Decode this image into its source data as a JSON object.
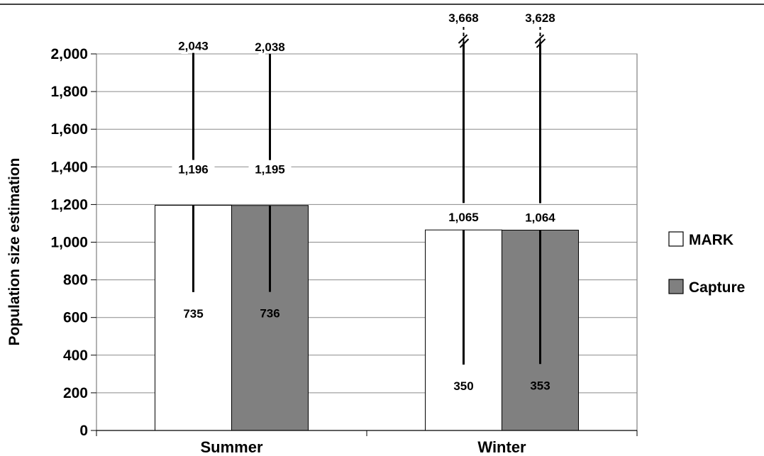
{
  "chart_data": {
    "type": "bar",
    "categories": [
      "Summer",
      "Winter"
    ],
    "ylabel": "Population size estimation",
    "xlabel": "",
    "title": "",
    "ylim": [
      0,
      2000
    ],
    "yticks": [
      0,
      200,
      400,
      600,
      800,
      1000,
      1200,
      1400,
      1600,
      1800,
      2000
    ],
    "ytick_labels": [
      "0",
      "200",
      "400",
      "600",
      "800",
      "1,000",
      "1,200",
      "1,400",
      "1,600",
      "1,800",
      "2,000"
    ],
    "grid": true,
    "legend_position": "right",
    "series": [
      {
        "name": "MARK",
        "color": "#ffffff",
        "values": [
          1196,
          1065
        ],
        "value_labels": [
          "1,196",
          "1,065"
        ],
        "lower": [
          735,
          350
        ],
        "lower_labels": [
          "735",
          "350"
        ],
        "upper": [
          2043,
          3668
        ],
        "upper_labels": [
          "2,043",
          "3,668"
        ],
        "upper_broken": [
          false,
          true
        ]
      },
      {
        "name": "Capture",
        "color": "#808080",
        "values": [
          1195,
          1064
        ],
        "value_labels": [
          "1,195",
          "1,064"
        ],
        "lower": [
          736,
          353
        ],
        "lower_labels": [
          "736",
          "353"
        ],
        "upper": [
          2038,
          3628
        ],
        "upper_labels": [
          "2,038",
          "3,628"
        ],
        "upper_broken": [
          false,
          true
        ]
      }
    ]
  }
}
